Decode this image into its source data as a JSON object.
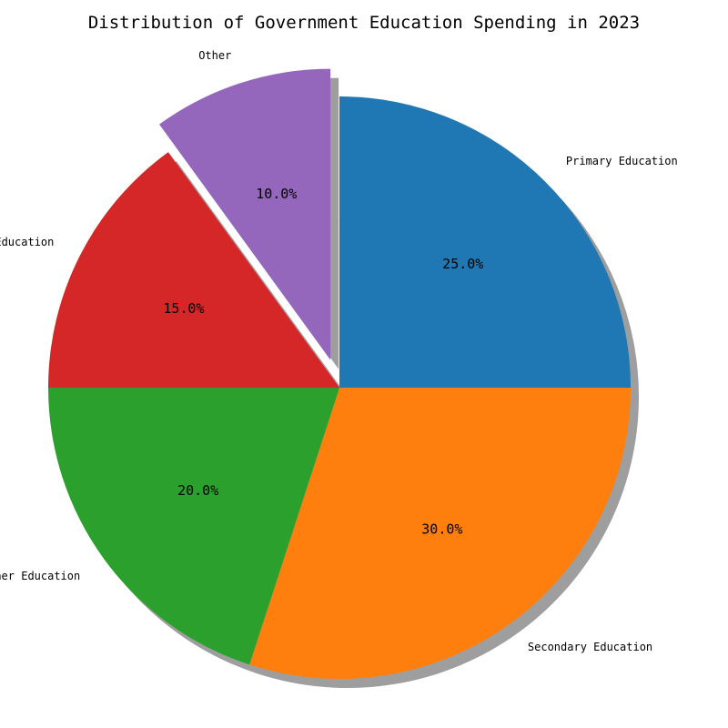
{
  "chart_data": {
    "type": "pie",
    "title": "Distribution of Government Education Spending in 2023",
    "slices": [
      {
        "label": "Primary Education",
        "value": 25.0,
        "pct_label": "25.0%",
        "color": "#1f77b4"
      },
      {
        "label": "Secondary Education",
        "value": 30.0,
        "pct_label": "30.0%",
        "color": "#ff7f0e"
      },
      {
        "label": "Higher Education",
        "value": 20.0,
        "pct_label": "20.0%",
        "color": "#2ca02c"
      },
      {
        "label": "Special Education",
        "value": 15.0,
        "pct_label": "15.0%",
        "color": "#d62728"
      },
      {
        "label": "Other",
        "value": 10.0,
        "pct_label": "10.0%",
        "color": "#9467bd",
        "exploded": true
      }
    ],
    "shadow": true,
    "legend": "none",
    "direction": "clockwise",
    "start": "top"
  }
}
